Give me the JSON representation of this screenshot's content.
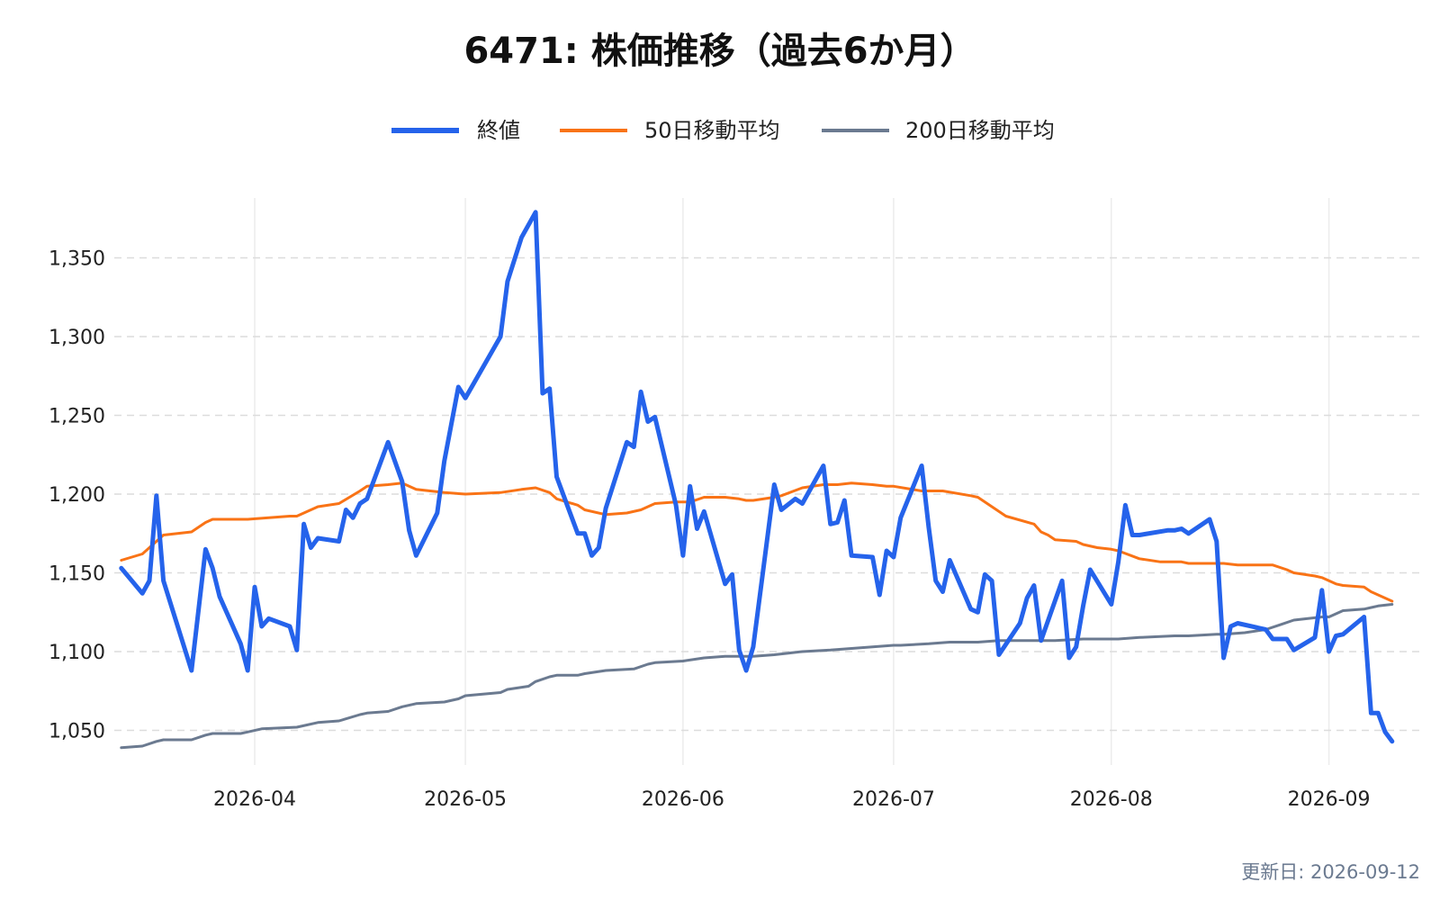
{
  "chart_data": {
    "type": "line",
    "title": "6471: 株価推移（過去6か月）",
    "xlabel": "",
    "ylabel": "",
    "ylim": [
      1028,
      1388
    ],
    "xlim": [
      "2026-03-12",
      "2026-09-14"
    ],
    "y_ticks": [
      1050,
      1100,
      1150,
      1200,
      1250,
      1300,
      1350
    ],
    "y_tick_labels": [
      "1,050",
      "1,100",
      "1,150",
      "1,200",
      "1,250",
      "1,300",
      "1,350"
    ],
    "x_ticks": [
      "2026-04-01",
      "2026-05-01",
      "2026-06-01",
      "2026-07-01",
      "2026-08-01",
      "2026-09-01"
    ],
    "x_tick_labels": [
      "2026-04",
      "2026-05",
      "2026-06",
      "2026-07",
      "2026-08",
      "2026-09"
    ],
    "grid": "horizontal dashed, vertical solid",
    "legend": "top-center",
    "series": [
      {
        "name": "終値",
        "color": "#2563eb",
        "points": [
          [
            "2026-03-13",
            1153
          ],
          [
            "2026-03-16",
            1137
          ],
          [
            "2026-03-17",
            1145
          ],
          [
            "2026-03-18",
            1199
          ],
          [
            "2026-03-19",
            1145
          ],
          [
            "2026-03-23",
            1088
          ],
          [
            "2026-03-25",
            1165
          ],
          [
            "2026-03-26",
            1153
          ],
          [
            "2026-03-27",
            1135
          ],
          [
            "2026-03-30",
            1105
          ],
          [
            "2026-03-31",
            1088
          ],
          [
            "2026-04-01",
            1141
          ],
          [
            "2026-04-02",
            1116
          ],
          [
            "2026-04-03",
            1121
          ],
          [
            "2026-04-06",
            1116
          ],
          [
            "2026-04-07",
            1101
          ],
          [
            "2026-04-08",
            1181
          ],
          [
            "2026-04-09",
            1166
          ],
          [
            "2026-04-10",
            1172
          ],
          [
            "2026-04-13",
            1170
          ],
          [
            "2026-04-14",
            1190
          ],
          [
            "2026-04-15",
            1185
          ],
          [
            "2026-04-16",
            1194
          ],
          [
            "2026-04-17",
            1197
          ],
          [
            "2026-04-20",
            1233
          ],
          [
            "2026-04-22",
            1208
          ],
          [
            "2026-04-23",
            1177
          ],
          [
            "2026-04-24",
            1161
          ],
          [
            "2026-04-27",
            1188
          ],
          [
            "2026-04-28",
            1221
          ],
          [
            "2026-04-30",
            1268
          ],
          [
            "2026-05-01",
            1261
          ],
          [
            "2026-05-06",
            1300
          ],
          [
            "2026-05-07",
            1335
          ],
          [
            "2026-05-09",
            1363
          ],
          [
            "2026-05-11",
            1379
          ],
          [
            "2026-05-12",
            1264
          ],
          [
            "2026-05-13",
            1267
          ],
          [
            "2026-05-14",
            1211
          ],
          [
            "2026-05-17",
            1175
          ],
          [
            "2026-05-18",
            1175
          ],
          [
            "2026-05-19",
            1161
          ],
          [
            "2026-05-20",
            1166
          ],
          [
            "2026-05-21",
            1191
          ],
          [
            "2026-05-24",
            1233
          ],
          [
            "2026-05-25",
            1230
          ],
          [
            "2026-05-26",
            1265
          ],
          [
            "2026-05-27",
            1246
          ],
          [
            "2026-05-28",
            1249
          ],
          [
            "2026-05-31",
            1193
          ],
          [
            "2026-06-01",
            1161
          ],
          [
            "2026-06-02",
            1205
          ],
          [
            "2026-06-03",
            1178
          ],
          [
            "2026-06-04",
            1189
          ],
          [
            "2026-06-07",
            1143
          ],
          [
            "2026-06-08",
            1149
          ],
          [
            "2026-06-09",
            1101
          ],
          [
            "2026-06-10",
            1088
          ],
          [
            "2026-06-11",
            1103
          ],
          [
            "2026-06-14",
            1206
          ],
          [
            "2026-06-15",
            1190
          ],
          [
            "2026-06-17",
            1197
          ],
          [
            "2026-06-18",
            1194
          ],
          [
            "2026-06-21",
            1218
          ],
          [
            "2026-06-22",
            1181
          ],
          [
            "2026-06-23",
            1182
          ],
          [
            "2026-06-24",
            1196
          ],
          [
            "2026-06-25",
            1161
          ],
          [
            "2026-06-28",
            1160
          ],
          [
            "2026-06-29",
            1136
          ],
          [
            "2026-06-30",
            1164
          ],
          [
            "2026-07-01",
            1160
          ],
          [
            "2026-07-02",
            1185
          ],
          [
            "2026-07-05",
            1218
          ],
          [
            "2026-07-06",
            1179
          ],
          [
            "2026-07-07",
            1145
          ],
          [
            "2026-07-08",
            1138
          ],
          [
            "2026-07-09",
            1158
          ],
          [
            "2026-07-12",
            1127
          ],
          [
            "2026-07-13",
            1125
          ],
          [
            "2026-07-14",
            1149
          ],
          [
            "2026-07-15",
            1145
          ],
          [
            "2026-07-16",
            1098
          ],
          [
            "2026-07-19",
            1118
          ],
          [
            "2026-07-20",
            1134
          ],
          [
            "2026-07-21",
            1142
          ],
          [
            "2026-07-22",
            1107
          ],
          [
            "2026-07-25",
            1145
          ],
          [
            "2026-07-26",
            1096
          ],
          [
            "2026-07-27",
            1103
          ],
          [
            "2026-07-28",
            1129
          ],
          [
            "2026-07-29",
            1152
          ],
          [
            "2026-08-01",
            1130
          ],
          [
            "2026-08-02",
            1157
          ],
          [
            "2026-08-03",
            1193
          ],
          [
            "2026-08-04",
            1174
          ],
          [
            "2026-08-05",
            1174
          ],
          [
            "2026-08-09",
            1177
          ],
          [
            "2026-08-10",
            1177
          ],
          [
            "2026-08-11",
            1178
          ],
          [
            "2026-08-12",
            1175
          ],
          [
            "2026-08-15",
            1184
          ],
          [
            "2026-08-16",
            1170
          ],
          [
            "2026-08-17",
            1096
          ],
          [
            "2026-08-18",
            1116
          ],
          [
            "2026-08-19",
            1118
          ],
          [
            "2026-08-23",
            1114
          ],
          [
            "2026-08-24",
            1108
          ],
          [
            "2026-08-26",
            1108
          ],
          [
            "2026-08-27",
            1101
          ],
          [
            "2026-08-30",
            1109
          ],
          [
            "2026-08-31",
            1139
          ],
          [
            "2026-09-01",
            1100
          ],
          [
            "2026-09-02",
            1110
          ],
          [
            "2026-09-03",
            1111
          ],
          [
            "2026-09-06",
            1122
          ],
          [
            "2026-09-07",
            1061
          ],
          [
            "2026-09-08",
            1061
          ],
          [
            "2026-09-09",
            1049
          ],
          [
            "2026-09-10",
            1043
          ]
        ]
      },
      {
        "name": "50日移動平均",
        "color": "#f97316",
        "points": [
          [
            "2026-03-13",
            1158
          ],
          [
            "2026-03-16",
            1162
          ],
          [
            "2026-03-18",
            1170
          ],
          [
            "2026-03-19",
            1174
          ],
          [
            "2026-03-23",
            1176
          ],
          [
            "2026-03-25",
            1182
          ],
          [
            "2026-03-26",
            1184
          ],
          [
            "2026-03-30",
            1184
          ],
          [
            "2026-03-31",
            1184
          ],
          [
            "2026-04-06",
            1186
          ],
          [
            "2026-04-07",
            1186
          ],
          [
            "2026-04-10",
            1192
          ],
          [
            "2026-04-13",
            1194
          ],
          [
            "2026-04-16",
            1202
          ],
          [
            "2026-04-17",
            1205
          ],
          [
            "2026-04-20",
            1206
          ],
          [
            "2026-04-22",
            1207
          ],
          [
            "2026-04-24",
            1203
          ],
          [
            "2026-04-28",
            1201
          ],
          [
            "2026-05-01",
            1200
          ],
          [
            "2026-05-06",
            1201
          ],
          [
            "2026-05-09",
            1203
          ],
          [
            "2026-05-11",
            1204
          ],
          [
            "2026-05-13",
            1201
          ],
          [
            "2026-05-14",
            1197
          ],
          [
            "2026-05-17",
            1193
          ],
          [
            "2026-05-18",
            1190
          ],
          [
            "2026-05-21",
            1187
          ],
          [
            "2026-05-24",
            1188
          ],
          [
            "2026-05-26",
            1190
          ],
          [
            "2026-05-28",
            1194
          ],
          [
            "2026-05-31",
            1195
          ],
          [
            "2026-06-01",
            1195
          ],
          [
            "2026-06-02",
            1195
          ],
          [
            "2026-06-04",
            1198
          ],
          [
            "2026-06-07",
            1198
          ],
          [
            "2026-06-09",
            1197
          ],
          [
            "2026-06-10",
            1196
          ],
          [
            "2026-06-11",
            1196
          ],
          [
            "2026-06-14",
            1198
          ],
          [
            "2026-06-15",
            1199
          ],
          [
            "2026-06-18",
            1204
          ],
          [
            "2026-06-21",
            1206
          ],
          [
            "2026-06-23",
            1206
          ],
          [
            "2026-06-25",
            1207
          ],
          [
            "2026-06-28",
            1206
          ],
          [
            "2026-06-30",
            1205
          ],
          [
            "2026-07-01",
            1205
          ],
          [
            "2026-07-05",
            1202
          ],
          [
            "2026-07-08",
            1202
          ],
          [
            "2026-07-12",
            1199
          ],
          [
            "2026-07-13",
            1198
          ],
          [
            "2026-07-15",
            1192
          ],
          [
            "2026-07-16",
            1189
          ],
          [
            "2026-07-17",
            1186
          ],
          [
            "2026-07-21",
            1181
          ],
          [
            "2026-07-22",
            1176
          ],
          [
            "2026-07-23",
            1174
          ],
          [
            "2026-07-24",
            1171
          ],
          [
            "2026-07-27",
            1170
          ],
          [
            "2026-07-28",
            1168
          ],
          [
            "2026-07-30",
            1166
          ],
          [
            "2026-08-01",
            1165
          ],
          [
            "2026-08-02",
            1164
          ],
          [
            "2026-08-05",
            1159
          ],
          [
            "2026-08-08",
            1157
          ],
          [
            "2026-08-11",
            1157
          ],
          [
            "2026-08-12",
            1156
          ],
          [
            "2026-08-17",
            1156
          ],
          [
            "2026-08-19",
            1155
          ],
          [
            "2026-08-22",
            1155
          ],
          [
            "2026-08-24",
            1155
          ],
          [
            "2026-08-26",
            1152
          ],
          [
            "2026-08-27",
            1150
          ],
          [
            "2026-08-30",
            1148
          ],
          [
            "2026-08-31",
            1147
          ],
          [
            "2026-09-01",
            1145
          ],
          [
            "2026-09-02",
            1143
          ],
          [
            "2026-09-03",
            1142
          ],
          [
            "2026-09-06",
            1141
          ],
          [
            "2026-09-07",
            1138
          ],
          [
            "2026-09-08",
            1136
          ],
          [
            "2026-09-09",
            1134
          ],
          [
            "2026-09-10",
            1132
          ]
        ]
      },
      {
        "name": "200日移動平均",
        "color": "#6b7a90",
        "points": [
          [
            "2026-03-13",
            1039
          ],
          [
            "2026-03-16",
            1040
          ],
          [
            "2026-03-18",
            1043
          ],
          [
            "2026-03-19",
            1044
          ],
          [
            "2026-03-23",
            1044
          ],
          [
            "2026-03-25",
            1047
          ],
          [
            "2026-03-26",
            1048
          ],
          [
            "2026-03-30",
            1048
          ],
          [
            "2026-03-31",
            1049
          ],
          [
            "2026-04-02",
            1051
          ],
          [
            "2026-04-07",
            1052
          ],
          [
            "2026-04-10",
            1055
          ],
          [
            "2026-04-13",
            1056
          ],
          [
            "2026-04-16",
            1060
          ],
          [
            "2026-04-17",
            1061
          ],
          [
            "2026-04-20",
            1062
          ],
          [
            "2026-04-22",
            1065
          ],
          [
            "2026-04-24",
            1067
          ],
          [
            "2026-04-28",
            1068
          ],
          [
            "2026-04-30",
            1070
          ],
          [
            "2026-05-01",
            1072
          ],
          [
            "2026-05-06",
            1074
          ],
          [
            "2026-05-07",
            1076
          ],
          [
            "2026-05-10",
            1078
          ],
          [
            "2026-05-11",
            1081
          ],
          [
            "2026-05-13",
            1084
          ],
          [
            "2026-05-14",
            1085
          ],
          [
            "2026-05-17",
            1085
          ],
          [
            "2026-05-18",
            1086
          ],
          [
            "2026-05-21",
            1088
          ],
          [
            "2026-05-25",
            1089
          ],
          [
            "2026-05-27",
            1092
          ],
          [
            "2026-05-28",
            1093
          ],
          [
            "2026-06-01",
            1094
          ],
          [
            "2026-06-04",
            1096
          ],
          [
            "2026-06-07",
            1097
          ],
          [
            "2026-06-11",
            1097
          ],
          [
            "2026-06-14",
            1098
          ],
          [
            "2026-06-16",
            1099
          ],
          [
            "2026-06-18",
            1100
          ],
          [
            "2026-06-22",
            1101
          ],
          [
            "2026-06-25",
            1102
          ],
          [
            "2026-06-28",
            1103
          ],
          [
            "2026-07-01",
            1104
          ],
          [
            "2026-07-02",
            1104
          ],
          [
            "2026-07-06",
            1105
          ],
          [
            "2026-07-09",
            1106
          ],
          [
            "2026-07-13",
            1106
          ],
          [
            "2026-07-16",
            1107
          ],
          [
            "2026-07-20",
            1107
          ],
          [
            "2026-07-24",
            1107
          ],
          [
            "2026-07-28",
            1108
          ],
          [
            "2026-08-01",
            1108
          ],
          [
            "2026-08-02",
            1108
          ],
          [
            "2026-08-05",
            1109
          ],
          [
            "2026-08-10",
            1110
          ],
          [
            "2026-08-12",
            1110
          ],
          [
            "2026-08-16",
            1111
          ],
          [
            "2026-08-17",
            1111
          ],
          [
            "2026-08-20",
            1112
          ],
          [
            "2026-08-23",
            1114
          ],
          [
            "2026-08-25",
            1117
          ],
          [
            "2026-08-27",
            1120
          ],
          [
            "2026-08-31",
            1122
          ],
          [
            "2026-09-01",
            1122
          ],
          [
            "2026-09-02",
            1124
          ],
          [
            "2026-09-03",
            1126
          ],
          [
            "2026-09-06",
            1127
          ],
          [
            "2026-09-08",
            1129
          ],
          [
            "2026-09-10",
            1130
          ]
        ]
      }
    ]
  },
  "footer": {
    "updated_text": "更新日: 2026-09-12"
  }
}
